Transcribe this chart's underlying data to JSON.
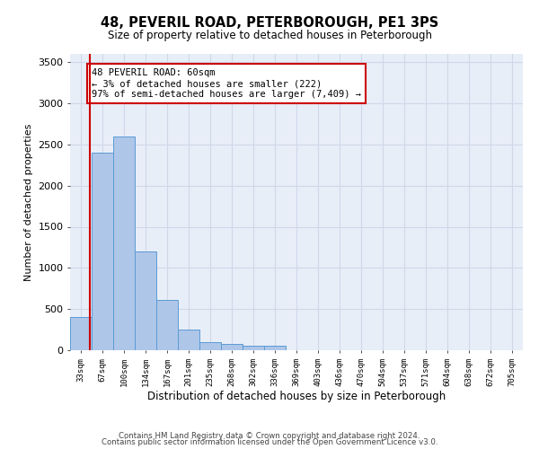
{
  "title": "48, PEVERIL ROAD, PETERBOROUGH, PE1 3PS",
  "subtitle": "Size of property relative to detached houses in Peterborough",
  "xlabel": "Distribution of detached houses by size in Peterborough",
  "ylabel": "Number of detached properties",
  "categories": [
    "33sqm",
    "67sqm",
    "100sqm",
    "134sqm",
    "167sqm",
    "201sqm",
    "235sqm",
    "268sqm",
    "302sqm",
    "336sqm",
    "369sqm",
    "403sqm",
    "436sqm",
    "470sqm",
    "504sqm",
    "537sqm",
    "571sqm",
    "604sqm",
    "638sqm",
    "672sqm",
    "705sqm"
  ],
  "values": [
    400,
    2400,
    2600,
    1200,
    610,
    250,
    100,
    75,
    60,
    50,
    0,
    0,
    0,
    0,
    0,
    0,
    0,
    0,
    0,
    0,
    0
  ],
  "bar_color": "#aec6e8",
  "bar_edge_color": "#5b9bd5",
  "highlight_line_color": "#cc0000",
  "annotation_text": "48 PEVERIL ROAD: 60sqm\n← 3% of detached houses are smaller (222)\n97% of semi-detached houses are larger (7,409) →",
  "annotation_box_color": "#ffffff",
  "annotation_box_edge_color": "#cc0000",
  "ylim": [
    0,
    3600
  ],
  "yticks": [
    0,
    500,
    1000,
    1500,
    2000,
    2500,
    3000,
    3500
  ],
  "grid_color": "#d0d8e8",
  "bg_color": "#e8eef8",
  "footer1": "Contains HM Land Registry data © Crown copyright and database right 2024.",
  "footer2": "Contains public sector information licensed under the Open Government Licence v3.0."
}
